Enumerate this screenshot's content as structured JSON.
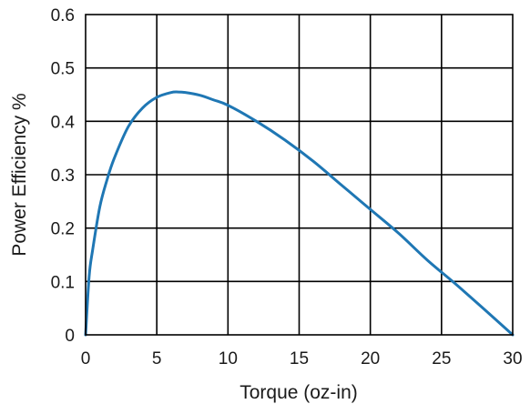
{
  "chart_data": {
    "type": "line",
    "title": "",
    "xlabel": "Torque (oz-in)",
    "ylabel": "Power Efficiency %",
    "xlim": [
      0,
      30
    ],
    "ylim": [
      0,
      0.6
    ],
    "xticks": [
      0,
      5,
      10,
      15,
      20,
      25,
      30
    ],
    "yticks": [
      0,
      0.1,
      0.2,
      0.3,
      0.4,
      0.5,
      0.6
    ],
    "xtick_labels": [
      "0",
      "5",
      "10",
      "15",
      "20",
      "25",
      "30"
    ],
    "ytick_labels": [
      "0",
      "0.1",
      "0.2",
      "0.3",
      "0.4",
      "0.5",
      "0.6"
    ],
    "grid": true,
    "legend": "none",
    "series": [
      {
        "color": "#1f77b4",
        "x": [
          0,
          0.25,
          0.5,
          1,
          1.5,
          2,
          3,
          4,
          5,
          6,
          6.5,
          7,
          8,
          9,
          10,
          12,
          14,
          16,
          18,
          20,
          22,
          24,
          26,
          28,
          30
        ],
        "y": [
          0,
          0.11,
          0.16,
          0.24,
          0.29,
          0.33,
          0.39,
          0.425,
          0.445,
          0.454,
          0.455,
          0.454,
          0.449,
          0.44,
          0.43,
          0.4,
          0.365,
          0.325,
          0.28,
          0.235,
          0.19,
          0.14,
          0.095,
          0.048,
          0
        ]
      }
    ]
  }
}
